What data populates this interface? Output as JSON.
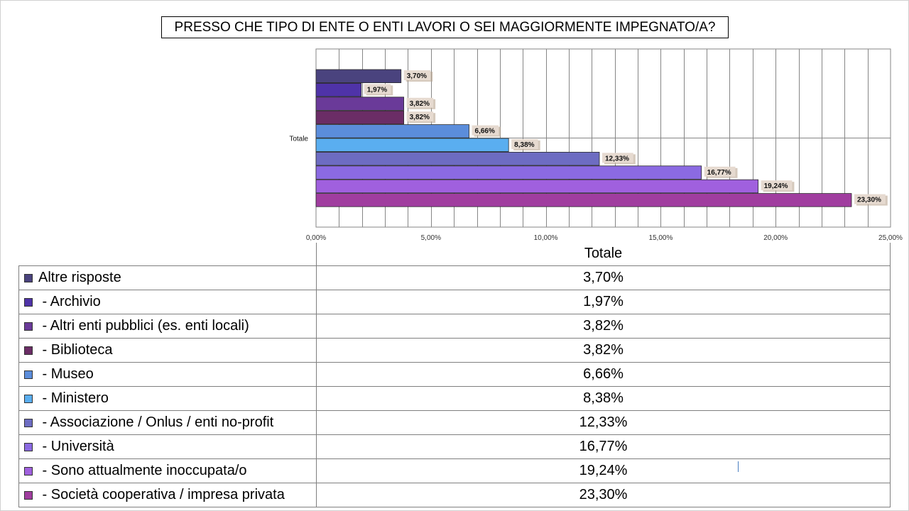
{
  "title": "PRESSO CHE TIPO DI ENTE O ENTI LAVORI O SEI MAGGIORMENTE IMPEGNATO/A?",
  "chart_data": {
    "type": "bar",
    "orientation": "horizontal",
    "categories": [
      "Totale"
    ],
    "xlim": [
      0,
      25
    ],
    "xticks": [
      "0,00%",
      "5,00%",
      "10,00%",
      "15,00%",
      "20,00%",
      "25,00%"
    ],
    "grid": true,
    "series": [
      {
        "name": "Altre risposte",
        "value": 3.7,
        "label": "3,70%",
        "color": "#4a437e"
      },
      {
        "name": "- Archivio",
        "value": 1.97,
        "label": "1,97%",
        "color": "#4f33a8"
      },
      {
        "name": "- Altri enti pubblici (es. enti locali)",
        "value": 3.82,
        "label": "3,82%",
        "color": "#6a3a99"
      },
      {
        "name": "- Biblioteca",
        "value": 3.82,
        "label": "3,82%",
        "color": "#6b2d66"
      },
      {
        "name": "- Museo",
        "value": 6.66,
        "label": "6,66%",
        "color": "#5b8ddb"
      },
      {
        "name": "- Ministero",
        "value": 8.38,
        "label": "8,38%",
        "color": "#5aaef0"
      },
      {
        "name": "- Associazione / Onlus / enti no-profit",
        "value": 12.33,
        "label": "12,33%",
        "color": "#6d6cc2"
      },
      {
        "name": "- Università",
        "value": 16.77,
        "label": "16,77%",
        "color": "#8b6ae2"
      },
      {
        "name": "- Sono attualmente inoccupata/o",
        "value": 19.24,
        "label": "19,24%",
        "color": "#a060de"
      },
      {
        "name": "- Società cooperativa / impresa privata",
        "value": 23.3,
        "label": "23,30%",
        "color": "#a03d9f"
      }
    ],
    "table": {
      "header": "Totale"
    }
  }
}
